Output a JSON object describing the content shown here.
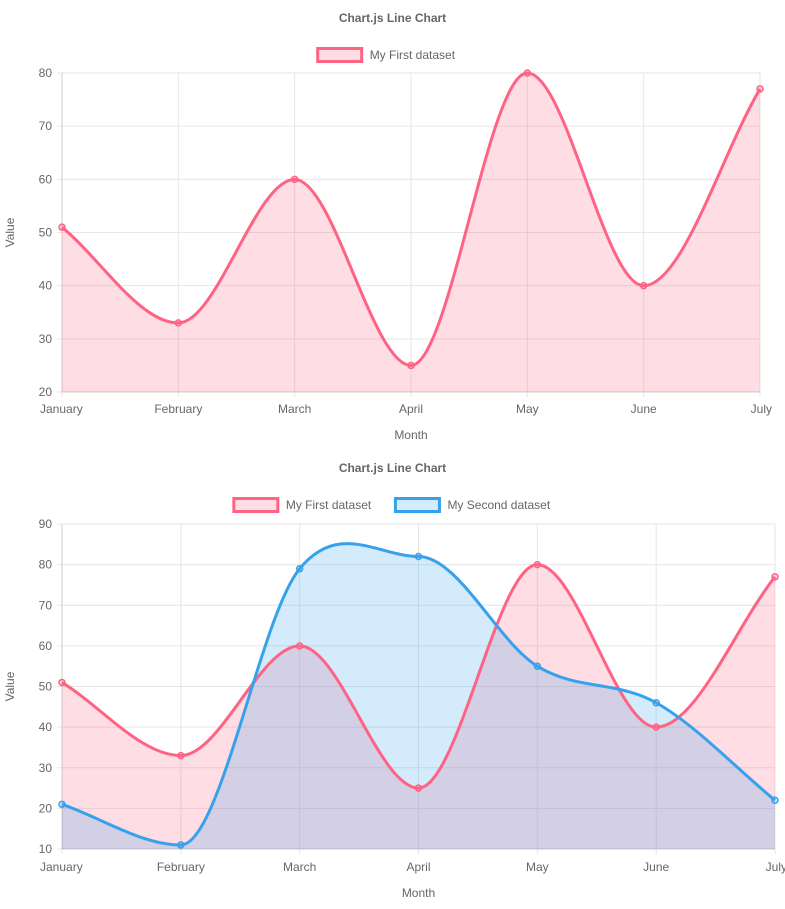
{
  "colors": {
    "series1_border": "#ff6384",
    "series1_fill": "rgba(255,99,132,0.22)",
    "series2_border": "#36a2eb",
    "series2_fill": "rgba(54,162,235,0.22)",
    "text": "#666666",
    "grid": "#e6e6e6"
  },
  "chart_data": [
    {
      "type": "line",
      "title": "Chart.js Line Chart",
      "xlabel": "Month",
      "ylabel": "Value",
      "categories": [
        "January",
        "February",
        "March",
        "April",
        "May",
        "June",
        "July"
      ],
      "ylim": [
        20,
        80
      ],
      "yticks": [
        20,
        30,
        40,
        50,
        60,
        70,
        80
      ],
      "grid": true,
      "legend_position": "top",
      "fill": true,
      "smooth": true,
      "series": [
        {
          "name": "My First dataset",
          "values": [
            51,
            33,
            60,
            25,
            80,
            40,
            77
          ],
          "color": "#ff6384"
        }
      ]
    },
    {
      "type": "line",
      "title": "Chart.js Line Chart",
      "xlabel": "Month",
      "ylabel": "Value",
      "categories": [
        "January",
        "February",
        "March",
        "April",
        "May",
        "June",
        "July"
      ],
      "ylim": [
        10,
        90
      ],
      "yticks": [
        10,
        20,
        30,
        40,
        50,
        60,
        70,
        80,
        90
      ],
      "grid": true,
      "legend_position": "top",
      "fill": true,
      "smooth": true,
      "series": [
        {
          "name": "My First dataset",
          "values": [
            51,
            33,
            60,
            25,
            80,
            40,
            77
          ],
          "color": "#ff6384"
        },
        {
          "name": "My Second dataset",
          "values": [
            21,
            11,
            79,
            82,
            55,
            46,
            22
          ],
          "color": "#36a2eb"
        }
      ]
    }
  ]
}
